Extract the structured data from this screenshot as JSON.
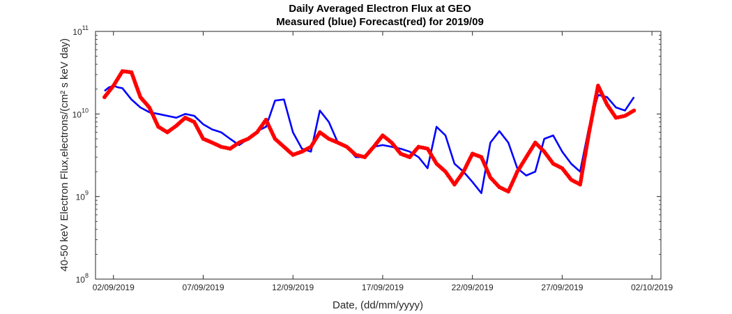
{
  "chart_data": {
    "type": "line",
    "title": "Daily Averaged Electron Flux at GEO",
    "subtitle": "Measured (blue) Forecast(red) for 2019/09",
    "xlabel": "Date, (dd/mm/yyyy)",
    "ylabel": "40-50 keV Electron Flux,electrons/(cm² s keV day)",
    "y_scale": "log",
    "ylim": [
      100000000.0,
      100000000000.0
    ],
    "xlim": [
      "2019-09-01 00:00",
      "2019-10-02 12:00"
    ],
    "x_ticks": [
      "02/09/2019",
      "07/09/2019",
      "12/09/2019",
      "17/09/2019",
      "22/09/2019",
      "27/09/2019",
      "02/10/2019"
    ],
    "y_ticks": [
      {
        "base": "10",
        "exp": "8",
        "value": 100000000.0
      },
      {
        "base": "10",
        "exp": "9",
        "value": 1000000000.0
      },
      {
        "base": "10",
        "exp": "10",
        "value": 10000000000.0
      },
      {
        "base": "10",
        "exp": "11",
        "value": 100000000000.0
      }
    ],
    "grid": false,
    "series": [
      {
        "name": "Measured",
        "color": "#0000ff",
        "style": "line",
        "x": [
          "2019-09-01 12:00",
          "2019-09-01 18:00",
          "2019-09-02 00:00",
          "2019-09-02 06:00",
          "2019-09-02 12:00",
          "2019-09-03 00:00",
          "2019-09-03 12:00",
          "2019-09-04 00:00",
          "2019-09-04 12:00",
          "2019-09-05 00:00",
          "2019-09-05 12:00",
          "2019-09-06 00:00",
          "2019-09-06 12:00",
          "2019-09-07 00:00",
          "2019-09-07 12:00",
          "2019-09-08 00:00",
          "2019-09-08 12:00",
          "2019-09-09 00:00",
          "2019-09-09 12:00",
          "2019-09-10 00:00",
          "2019-09-10 12:00",
          "2019-09-11 00:00",
          "2019-09-11 12:00",
          "2019-09-12 00:00",
          "2019-09-12 12:00",
          "2019-09-13 00:00",
          "2019-09-13 12:00",
          "2019-09-14 00:00",
          "2019-09-14 12:00",
          "2019-09-15 00:00",
          "2019-09-15 12:00",
          "2019-09-16 00:00",
          "2019-09-16 12:00",
          "2019-09-17 00:00",
          "2019-09-17 12:00",
          "2019-09-18 00:00",
          "2019-09-18 12:00",
          "2019-09-19 00:00",
          "2019-09-19 12:00",
          "2019-09-20 00:00",
          "2019-09-20 12:00",
          "2019-09-21 00:00",
          "2019-09-21 12:00",
          "2019-09-22 00:00",
          "2019-09-22 12:00",
          "2019-09-23 00:00",
          "2019-09-23 12:00",
          "2019-09-24 00:00",
          "2019-09-24 12:00",
          "2019-09-25 00:00",
          "2019-09-25 12:00",
          "2019-09-26 00:00",
          "2019-09-26 12:00",
          "2019-09-27 00:00",
          "2019-09-27 12:00",
          "2019-09-28 00:00",
          "2019-09-28 12:00",
          "2019-09-29 00:00",
          "2019-09-29 12:00",
          "2019-09-30 00:00",
          "2019-09-30 12:00",
          "2019-10-01 00:00"
        ],
        "y": [
          19000000000.0,
          21000000000.0,
          22000000000.0,
          21000000000.0,
          20500000000.0,
          15000000000.0,
          12000000000.0,
          10500000000.0,
          10000000000.0,
          9500000000.0,
          9000000000.0,
          10000000000.0,
          9500000000.0,
          7500000000.0,
          6500000000.0,
          6000000000.0,
          5000000000.0,
          4200000000.0,
          5000000000.0,
          6200000000.0,
          7000000000.0,
          14500000000.0,
          15000000000.0,
          6000000000.0,
          3800000000.0,
          3500000000.0,
          11000000000.0,
          8000000000.0,
          4500000000.0,
          4000000000.0,
          3000000000.0,
          3000000000.0,
          4000000000.0,
          4200000000.0,
          4000000000.0,
          3800000000.0,
          3500000000.0,
          3000000000.0,
          2200000000.0,
          7000000000.0,
          5500000000.0,
          2500000000.0,
          2000000000.0,
          1500000000.0,
          1100000000.0,
          4500000000.0,
          6200000000.0,
          4500000000.0,
          2200000000.0,
          1800000000.0,
          2000000000.0,
          5000000000.0,
          5500000000.0,
          3500000000.0,
          2500000000.0,
          2000000000.0,
          7000000000.0,
          17000000000.0,
          16000000000.0,
          12000000000.0,
          11000000000.0,
          16000000000.0
        ]
      },
      {
        "name": "Forecast",
        "color": "#ff0000",
        "style": "dots",
        "x": [
          "2019-09-01 12:00",
          "2019-09-02 00:00",
          "2019-09-02 12:00",
          "2019-09-03 00:00",
          "2019-09-03 12:00",
          "2019-09-04 00:00",
          "2019-09-04 12:00",
          "2019-09-05 00:00",
          "2019-09-05 12:00",
          "2019-09-06 00:00",
          "2019-09-06 12:00",
          "2019-09-07 00:00",
          "2019-09-07 12:00",
          "2019-09-08 00:00",
          "2019-09-08 12:00",
          "2019-09-09 00:00",
          "2019-09-09 12:00",
          "2019-09-10 00:00",
          "2019-09-10 12:00",
          "2019-09-11 00:00",
          "2019-09-11 12:00",
          "2019-09-12 00:00",
          "2019-09-12 12:00",
          "2019-09-13 00:00",
          "2019-09-13 12:00",
          "2019-09-14 00:00",
          "2019-09-14 12:00",
          "2019-09-15 00:00",
          "2019-09-15 12:00",
          "2019-09-16 00:00",
          "2019-09-16 12:00",
          "2019-09-17 00:00",
          "2019-09-17 12:00",
          "2019-09-18 00:00",
          "2019-09-18 12:00",
          "2019-09-19 00:00",
          "2019-09-19 12:00",
          "2019-09-20 00:00",
          "2019-09-20 12:00",
          "2019-09-21 00:00",
          "2019-09-21 12:00",
          "2019-09-22 00:00",
          "2019-09-22 12:00",
          "2019-09-23 00:00",
          "2019-09-23 12:00",
          "2019-09-24 00:00",
          "2019-09-24 12:00",
          "2019-09-25 00:00",
          "2019-09-25 12:00",
          "2019-09-26 00:00",
          "2019-09-26 12:00",
          "2019-09-27 00:00",
          "2019-09-27 12:00",
          "2019-09-28 00:00",
          "2019-09-28 12:00",
          "2019-09-29 00:00",
          "2019-09-29 12:00",
          "2019-09-30 00:00",
          "2019-09-30 12:00",
          "2019-10-01 00:00"
        ],
        "y": [
          16000000000.0,
          22000000000.0,
          33000000000.0,
          32000000000.0,
          16000000000.0,
          12000000000.0,
          7000000000.0,
          6000000000.0,
          7200000000.0,
          9000000000.0,
          8000000000.0,
          5000000000.0,
          4500000000.0,
          4000000000.0,
          3800000000.0,
          4500000000.0,
          5000000000.0,
          6000000000.0,
          8500000000.0,
          5000000000.0,
          4000000000.0,
          3200000000.0,
          3500000000.0,
          4000000000.0,
          6000000000.0,
          5000000000.0,
          4500000000.0,
          4000000000.0,
          3200000000.0,
          3000000000.0,
          4000000000.0,
          5500000000.0,
          4500000000.0,
          3300000000.0,
          3000000000.0,
          4000000000.0,
          3800000000.0,
          2500000000.0,
          2000000000.0,
          1400000000.0,
          2000000000.0,
          3300000000.0,
          3000000000.0,
          1700000000.0,
          1300000000.0,
          1150000000.0,
          2000000000.0,
          3000000000.0,
          4500000000.0,
          3500000000.0,
          2500000000.0,
          2200000000.0,
          1600000000.0,
          1400000000.0,
          6000000000.0,
          22000000000.0,
          13000000000.0,
          9000000000.0,
          9500000000.0,
          11000000000.0
        ]
      }
    ]
  }
}
